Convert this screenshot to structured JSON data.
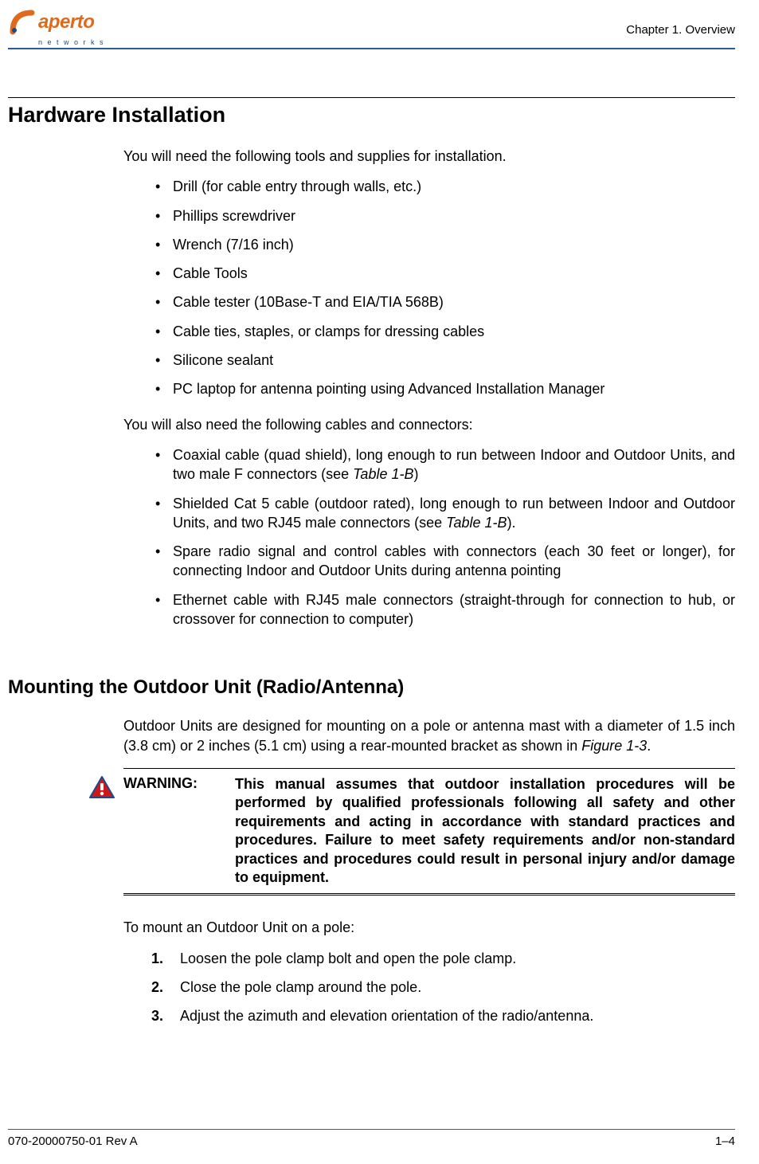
{
  "colors": {
    "brand_orange": "#e06a1c",
    "brand_blue": "#1a4a8a",
    "rule_blue": "#2a5a9a",
    "warning_red": "#d01818",
    "warning_border": "#1a4a8a",
    "text": "#000000"
  },
  "header": {
    "logo_main": "aperto",
    "logo_sub": "n e t w o r k s",
    "chapter": "Chapter 1.   Overview"
  },
  "section1": {
    "title": "Hardware Installation",
    "intro": "You will need the following tools and supplies for installation.",
    "bullets1": [
      "Drill (for cable entry through walls, etc.)",
      "Phillips screwdriver",
      "Wrench (7/16 inch)",
      "Cable Tools",
      "Cable tester (10Base-T and EIA/TIA 568B)",
      "Cable ties, staples, or clamps for dressing cables",
      "Silicone sealant",
      "PC laptop for antenna pointing using Advanced Installation Manager"
    ],
    "intro2": "You will also need the following cables and connectors:",
    "bullets2": [
      {
        "pre": "Coaxial cable (quad shield), long enough to run between Indoor and Outdoor Units, and two male F connectors (see ",
        "em": "Table 1-B",
        "post": ")"
      },
      {
        "pre": "Shielded Cat 5 cable (outdoor rated), long enough to run between Indoor and Outdoor Units, and two RJ45 male connectors (see ",
        "em": "Table 1-B",
        "post": ")."
      },
      {
        "pre": "Spare radio signal and control cables with connectors (each 30 feet or longer), for connecting Indoor and Outdoor Units during antenna pointing",
        "em": "",
        "post": ""
      },
      {
        "pre": "Ethernet cable with RJ45 male connectors (straight-through for connection to hub, or crossover for connection to computer)",
        "em": "",
        "post": ""
      }
    ]
  },
  "section2": {
    "title": "Mounting the Outdoor Unit (Radio/Antenna)",
    "intro_pre": "Outdoor Units are designed for mounting on a pole or antenna mast with a diameter of 1.5 inch (3.8 cm) or 2 inches (5.1 cm) using a rear-mounted bracket as shown in ",
    "intro_em": "Figure 1-3",
    "intro_post": ".",
    "warning_label": "WARNING:",
    "warning_text": "This manual assumes that outdoor installation procedures will be performed by qualified professionals following all safety and other requirements and acting in accordance with standard practices and procedures. Failure to meet safety requirements and/or non-standard practices and procedures could result in personal injury and/or damage to equipment.",
    "steps_intro": "To mount an Outdoor Unit on a pole:",
    "steps": [
      "Loosen the pole clamp bolt and open the pole clamp.",
      "Close the pole clamp around the pole.",
      "Adjust the azimuth and elevation orientation of the radio/antenna."
    ]
  },
  "footer": {
    "doc_id": "070-20000750-01 Rev A",
    "page": "1–4"
  }
}
